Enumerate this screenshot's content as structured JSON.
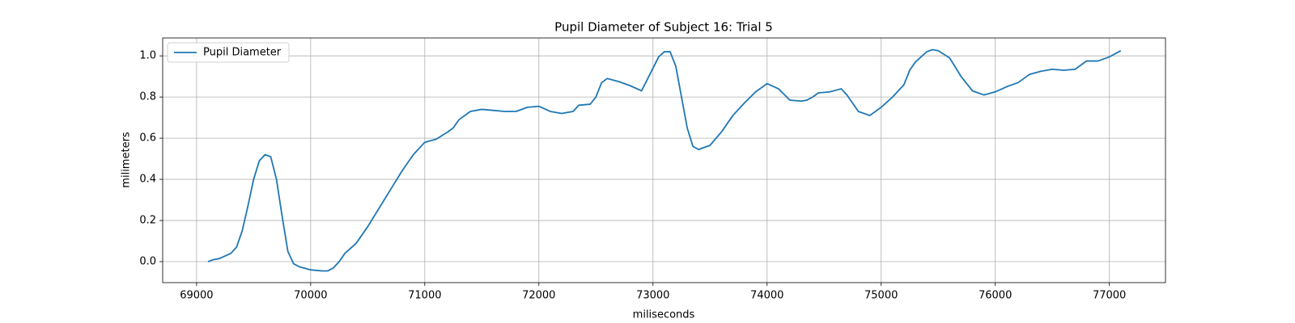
{
  "chart_data": {
    "type": "line",
    "title": "Pupil Diameter of Subject 16: Trial 5",
    "xlabel": "miliseconds",
    "ylabel": "milimeters",
    "x": [
      69100,
      69150,
      69200,
      69300,
      69350,
      69400,
      69450,
      69500,
      69550,
      69600,
      69650,
      69700,
      69750,
      69800,
      69850,
      69900,
      70000,
      70100,
      70150,
      70200,
      70250,
      70300,
      70400,
      70500,
      70600,
      70700,
      70800,
      70900,
      71000,
      71100,
      71200,
      71250,
      71300,
      71400,
      71500,
      71600,
      71700,
      71800,
      71900,
      72000,
      72100,
      72200,
      72300,
      72350,
      72450,
      72500,
      72550,
      72600,
      72700,
      72800,
      72900,
      73000,
      73050,
      73100,
      73150,
      73200,
      73250,
      73300,
      73350,
      73400,
      73500,
      73600,
      73700,
      73800,
      73900,
      74000,
      74100,
      74200,
      74300,
      74350,
      74400,
      74450,
      74550,
      74650,
      74700,
      74800,
      74900,
      75000,
      75100,
      75200,
      75250,
      75300,
      75400,
      75450,
      75500,
      75600,
      75700,
      75800,
      75900,
      76000,
      76100,
      76200,
      76300,
      76400,
      76500,
      76600,
      76700,
      76800,
      76900,
      77000,
      77100
    ],
    "series": [
      {
        "name": "Pupil Diameter",
        "color": "#1f77b4",
        "values": [
          0.0,
          0.01,
          0.015,
          0.04,
          0.07,
          0.15,
          0.27,
          0.4,
          0.49,
          0.52,
          0.51,
          0.4,
          0.22,
          0.05,
          -0.01,
          -0.025,
          -0.04,
          -0.045,
          -0.045,
          -0.03,
          0.0,
          0.04,
          0.09,
          0.17,
          0.26,
          0.35,
          0.44,
          0.52,
          0.58,
          0.595,
          0.63,
          0.65,
          0.69,
          0.73,
          0.74,
          0.735,
          0.73,
          0.73,
          0.75,
          0.755,
          0.73,
          0.72,
          0.73,
          0.76,
          0.765,
          0.8,
          0.87,
          0.89,
          0.875,
          0.855,
          0.83,
          0.94,
          0.995,
          1.02,
          1.02,
          0.95,
          0.8,
          0.65,
          0.56,
          0.545,
          0.565,
          0.63,
          0.71,
          0.77,
          0.825,
          0.865,
          0.84,
          0.785,
          0.78,
          0.785,
          0.8,
          0.82,
          0.825,
          0.84,
          0.81,
          0.73,
          0.71,
          0.75,
          0.8,
          0.86,
          0.93,
          0.97,
          1.02,
          1.03,
          1.025,
          0.99,
          0.9,
          0.83,
          0.81,
          0.825,
          0.85,
          0.87,
          0.91,
          0.925,
          0.935,
          0.93,
          0.935,
          0.975,
          0.975,
          0.995,
          1.025
        ]
      }
    ],
    "xlim": [
      68703,
      77492
    ],
    "ylim": [
      -0.102,
      1.087
    ],
    "xticks": [
      69000,
      70000,
      71000,
      72000,
      73000,
      74000,
      75000,
      76000,
      77000
    ],
    "yticks": [
      {
        "value": 0.0,
        "label": "0.0"
      },
      0.2,
      0.4,
      0.6,
      0.8,
      {
        "value": 1.0,
        "label": "1.0"
      }
    ],
    "grid": true,
    "legend": "upper left"
  }
}
